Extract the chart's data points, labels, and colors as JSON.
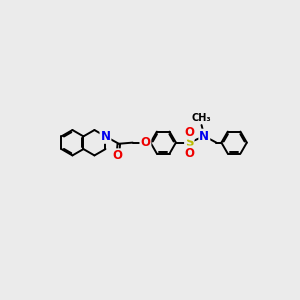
{
  "bg_color": "#ebebeb",
  "bond_color": "#000000",
  "bond_width": 1.4,
  "atom_colors": {
    "N": "#0000ee",
    "O": "#ee0000",
    "S": "#bbbb00",
    "C": "#000000"
  },
  "font_size_atom": 8.5
}
